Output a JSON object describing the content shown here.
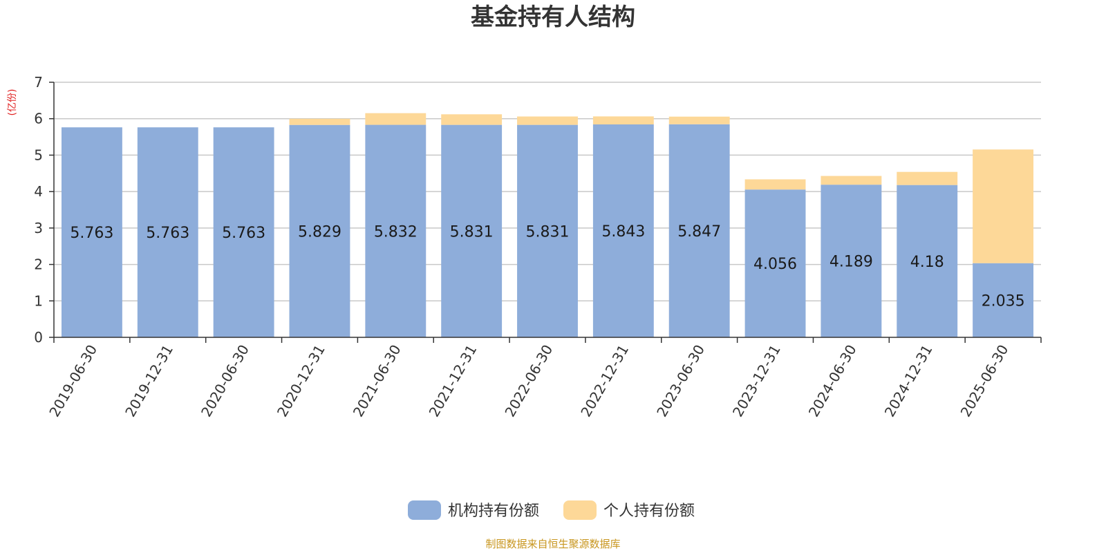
{
  "chart_data": {
    "type": "bar",
    "stacked": true,
    "title": "基金持有人结构",
    "ylabel": "(亿份)",
    "ylim": [
      0,
      7
    ],
    "yticks": [
      "0",
      "1",
      "2",
      "3",
      "4",
      "5",
      "6",
      "7"
    ],
    "grid": true,
    "legend_position": "bottom",
    "categories": [
      "2019-06-30",
      "2019-12-31",
      "2020-06-30",
      "2020-12-31",
      "2021-06-30",
      "2021-12-31",
      "2022-06-30",
      "2022-12-31",
      "2023-06-30",
      "2023-12-31",
      "2024-06-30",
      "2024-12-31",
      "2025-06-30"
    ],
    "series": [
      {
        "name": "机构持有份额",
        "color": "#8eadda",
        "values": [
          5.763,
          5.763,
          5.763,
          5.829,
          5.832,
          5.831,
          5.831,
          5.843,
          5.847,
          4.056,
          4.189,
          4.18,
          2.035
        ],
        "labels": [
          "5.763",
          "5.763",
          "5.763",
          "5.829",
          "5.832",
          "5.831",
          "5.831",
          "5.843",
          "5.847",
          "4.056",
          "4.189",
          "4.18",
          "2.035"
        ]
      },
      {
        "name": "个人持有份额",
        "color": "#fdd898",
        "values": [
          0.0,
          0.0,
          0.0,
          0.17,
          0.32,
          0.29,
          0.23,
          0.22,
          0.21,
          0.28,
          0.24,
          0.36,
          3.12
        ]
      }
    ],
    "source": "制图数据来自恒生聚源数据库"
  }
}
